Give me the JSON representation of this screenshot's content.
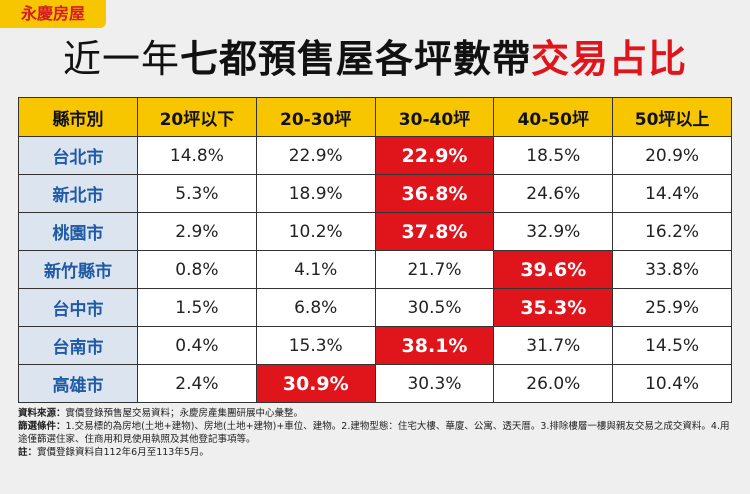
{
  "logo": "永慶房屋",
  "title": {
    "light": "近一年",
    "bold": "七都預售屋各坪數帶",
    "accent": "交易占比"
  },
  "table": {
    "header": [
      "縣市別",
      "20坪以下",
      "20-30坪",
      "30-40坪",
      "40-50坪",
      "50坪以上"
    ],
    "rows": [
      [
        "台北市",
        "14.8%",
        "22.9%",
        "22.9%",
        "18.5%",
        "20.9%"
      ],
      [
        "新北市",
        "5.3%",
        "18.9%",
        "36.8%",
        "24.6%",
        "14.4%"
      ],
      [
        "桃園市",
        "2.9%",
        "10.2%",
        "37.8%",
        "32.9%",
        "16.2%"
      ],
      [
        "新竹縣市",
        "0.8%",
        "4.1%",
        "21.7%",
        "39.6%",
        "33.8%"
      ],
      [
        "台中市",
        "1.5%",
        "6.8%",
        "30.5%",
        "35.3%",
        "25.9%"
      ],
      [
        "台南市",
        "0.4%",
        "15.3%",
        "38.1%",
        "31.7%",
        "14.5%"
      ],
      [
        "高雄市",
        "2.4%",
        "30.9%",
        "30.3%",
        "26.0%",
        "10.4%"
      ]
    ],
    "highlight": [
      3,
      3,
      3,
      4,
      4,
      3,
      2
    ]
  },
  "notes": [
    {
      "label": "資料來源：",
      "text": "實價登錄預售屋交易資料；永慶房產集團研展中心彙整。"
    },
    {
      "label": "篩選條件：",
      "text": "1.交易標的為房地(土地+建物)、房地(土地+建物)+車位、建物。2.建物型態：住宅大樓、華廈、公寓、透天厝。3.排除樓層一樓與親友交易之成交資料。4.用途僅篩選住家、住商用和見使用執照及其他登記事項等。"
    },
    {
      "label": "註：",
      "text": "實價登錄資料自112年6月至113年5月。"
    }
  ]
}
